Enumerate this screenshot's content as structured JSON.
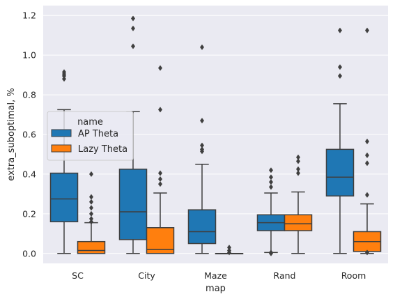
{
  "chart_data": {
    "type": "box",
    "title": "",
    "xlabel": "map",
    "ylabel": "extra_suboptimal, %",
    "ylim": [
      -0.05,
      1.25
    ],
    "yticks": [
      0.0,
      0.2,
      0.4,
      0.6,
      0.8,
      1.0,
      1.2
    ],
    "grid": true,
    "categories": [
      "SC",
      "City",
      "Maze",
      "Rand",
      "Room"
    ],
    "legend": {
      "title": "name",
      "placement": "center-left"
    },
    "series": [
      {
        "name": "AP Theta",
        "color": "#1f77b4",
        "boxes": [
          {
            "whisker_low": 0.0,
            "q1": 0.16,
            "median": 0.275,
            "q3": 0.405,
            "whisker_high": 0.725,
            "outliers": [
              0.88,
              0.895,
              0.905,
              0.915
            ]
          },
          {
            "whisker_low": 0.0,
            "q1": 0.07,
            "median": 0.21,
            "q3": 0.425,
            "whisker_high": 0.715,
            "outliers": [
              1.045,
              1.135,
              1.185
            ]
          },
          {
            "whisker_low": 0.0,
            "q1": 0.05,
            "median": 0.11,
            "q3": 0.22,
            "whisker_high": 0.45,
            "outliers": [
              0.515,
              0.525,
              0.545,
              0.67,
              1.04
            ]
          },
          {
            "whisker_low": 0.005,
            "q1": 0.115,
            "median": 0.155,
            "q3": 0.195,
            "whisker_high": 0.305,
            "outliers": [
              0.0,
              0.005,
              0.335,
              0.36,
              0.385,
              0.42
            ]
          },
          {
            "whisker_low": 0.0,
            "q1": 0.29,
            "median": 0.385,
            "q3": 0.525,
            "whisker_high": 0.755,
            "outliers": [
              0.895,
              0.94,
              1.125
            ]
          }
        ]
      },
      {
        "name": "Lazy Theta",
        "color": "#ff7f0e",
        "boxes": [
          {
            "whisker_low": 0.0,
            "q1": 0.0,
            "median": 0.015,
            "q3": 0.06,
            "whisker_high": 0.155,
            "outliers": [
              0.16,
              0.175,
              0.2,
              0.23,
              0.26,
              0.285,
              0.4
            ]
          },
          {
            "whisker_low": 0.0,
            "q1": 0.0,
            "median": 0.02,
            "q3": 0.13,
            "whisker_high": 0.305,
            "outliers": [
              0.35,
              0.375,
              0.405,
              0.725,
              0.935
            ]
          },
          {
            "whisker_low": 0.0,
            "q1": 0.0,
            "median": 0.0,
            "q3": 0.0,
            "whisker_high": 0.0,
            "outliers": [
              0.005,
              0.015,
              0.03
            ]
          },
          {
            "whisker_low": 0.0,
            "q1": 0.115,
            "median": 0.15,
            "q3": 0.195,
            "whisker_high": 0.31,
            "outliers": [
              0.405,
              0.425,
              0.465,
              0.485
            ]
          },
          {
            "whisker_low": 0.0,
            "q1": 0.01,
            "median": 0.06,
            "q3": 0.11,
            "whisker_high": 0.25,
            "outliers": [
              0.005,
              0.295,
              0.455,
              0.495,
              0.565,
              1.125
            ]
          }
        ]
      }
    ]
  }
}
